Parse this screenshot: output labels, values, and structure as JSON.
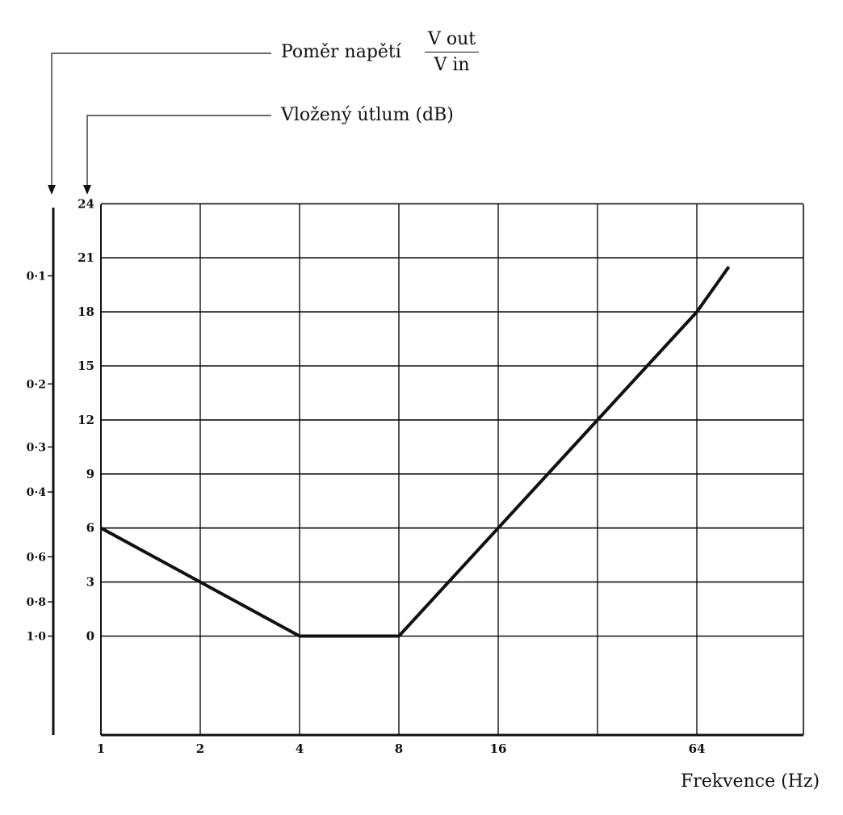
{
  "chart_data": {
    "type": "line",
    "title": "",
    "xlabel": "Frekvence (Hz)",
    "x_scale": "log2",
    "x_ticks": [
      "1",
      "2",
      "4",
      "8",
      "16",
      "",
      "64"
    ],
    "xlim": [
      1,
      128
    ],
    "ylabel": "Vložený útlum (dB)",
    "y_ticks": [
      "0",
      "3",
      "6",
      "9",
      "12",
      "15",
      "18",
      "21",
      "24"
    ],
    "ylim": [
      -5.5,
      24
    ],
    "y2label": "Poměr napětí",
    "y2label_fraction": {
      "numerator": "V out",
      "denominator": "V in"
    },
    "y2_ticks": [
      {
        "label": "0·1",
        "db": 20
      },
      {
        "label": "0·2",
        "db": 14
      },
      {
        "label": "0·3",
        "db": 10.5
      },
      {
        "label": "0·4",
        "db": 8
      },
      {
        "label": "0·6",
        "db": 4.4
      },
      {
        "label": "0·8",
        "db": 1.9
      },
      {
        "label": "1·0",
        "db": 0
      }
    ],
    "grid": true,
    "series": [
      {
        "x": [
          1,
          4,
          8,
          16,
          32,
          64,
          80
        ],
        "y": [
          6,
          0,
          0,
          6,
          12,
          18,
          20.5
        ]
      }
    ]
  }
}
